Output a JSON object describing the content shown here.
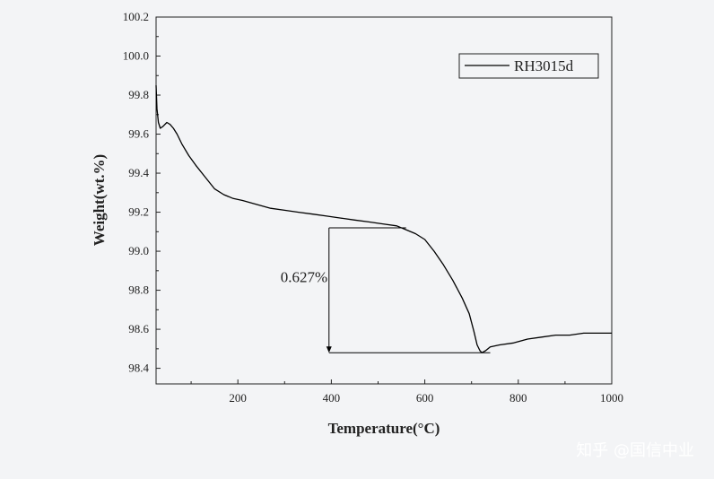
{
  "watermark": "知乎 @国信中业",
  "chart_data": {
    "type": "line",
    "xlabel": "Temperature(°C)",
    "ylabel": "Weight(wt.%)",
    "xlim": [
      25,
      1000
    ],
    "ylim": [
      98.32,
      100.2
    ],
    "x_ticks": [
      200,
      400,
      600,
      800,
      1000
    ],
    "y_ticks": [
      98.4,
      98.6,
      98.8,
      99.0,
      99.2,
      99.4,
      99.6,
      99.8,
      100.0,
      100.2
    ],
    "x_tick_labels": [
      "200",
      "400",
      "600",
      "800",
      "1000"
    ],
    "y_tick_labels": [
      "98.4",
      "98.6",
      "98.8",
      "99.0",
      "99.2",
      "99.4",
      "99.6",
      "99.8",
      "100.0",
      "100.2"
    ],
    "grid": false,
    "legend": {
      "position": "top-right"
    },
    "series": [
      {
        "name": "RH3015d",
        "color": "#000000",
        "x": [
          25,
          27,
          30,
          34,
          40,
          48,
          55,
          62,
          70,
          80,
          95,
          110,
          130,
          150,
          170,
          190,
          210,
          240,
          270,
          300,
          330,
          360,
          390,
          420,
          450,
          480,
          510,
          540,
          560,
          580,
          600,
          620,
          640,
          660,
          680,
          695,
          705,
          712,
          718,
          722,
          730,
          740,
          760,
          790,
          820,
          850,
          880,
          910,
          940,
          970,
          1000
        ],
        "y": [
          99.85,
          99.73,
          99.66,
          99.63,
          99.64,
          99.66,
          99.65,
          99.63,
          99.6,
          99.55,
          99.49,
          99.44,
          99.38,
          99.32,
          99.29,
          99.27,
          99.26,
          99.24,
          99.22,
          99.21,
          99.2,
          99.19,
          99.18,
          99.17,
          99.16,
          99.15,
          99.14,
          99.13,
          99.11,
          99.09,
          99.06,
          99.0,
          98.93,
          98.85,
          98.76,
          98.68,
          98.59,
          98.52,
          98.49,
          98.48,
          98.49,
          98.51,
          98.52,
          98.53,
          98.55,
          98.56,
          98.57,
          98.57,
          98.58,
          98.58,
          98.58
        ]
      }
    ],
    "annotations": [
      {
        "text": "0.627%",
        "x": 380,
        "y": 98.87
      }
    ],
    "bracket": {
      "x": 395,
      "x_end": 740,
      "y_top": 99.12,
      "y_bottom": 98.48
    }
  }
}
